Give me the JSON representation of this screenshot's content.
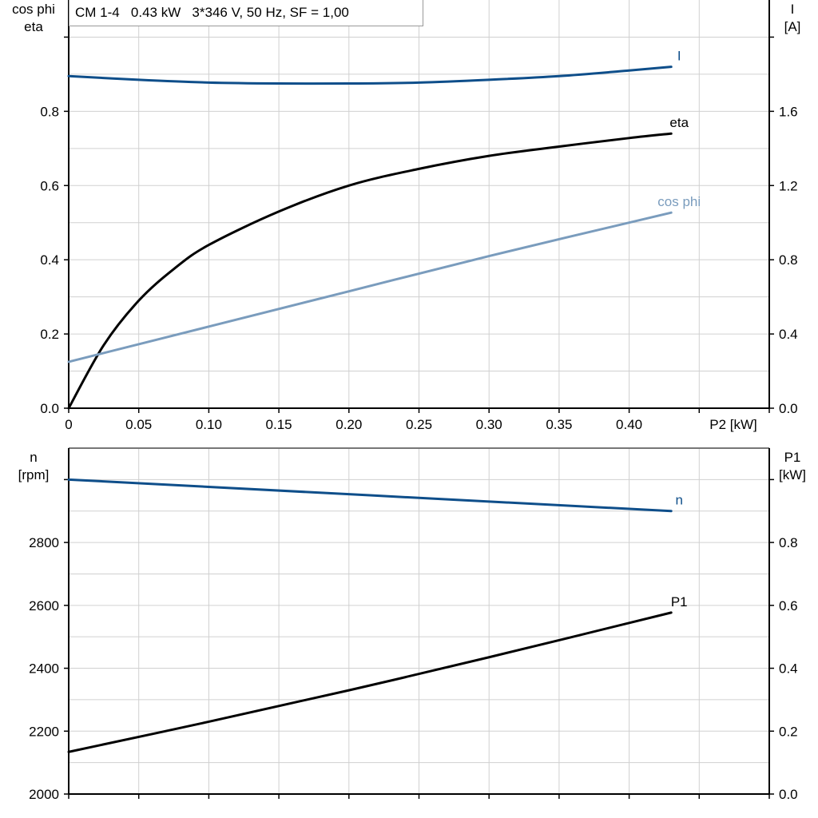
{
  "title": "CM 1-4   0.43 kW   3*346 V, 50 Hz, SF = 1,00",
  "colors": {
    "I": "#0e4e8a",
    "eta": "#000000",
    "cos_phi": "#7a9cbd",
    "n": "#0e4e8a",
    "P1": "#000000",
    "grid": "#d0d0d0"
  },
  "chart_data": [
    {
      "type": "line",
      "xlabel": "P2 [kW]",
      "xlim": [
        0,
        0.5
      ],
      "x_ticks": [
        "0",
        "0.05",
        "0.10",
        "0.15",
        "0.20",
        "0.25",
        "0.30",
        "0.35",
        "0.40"
      ],
      "ylabel_left": [
        "cos phi",
        "eta"
      ],
      "ylim_left": [
        0,
        1.1
      ],
      "y_ticks_left": [
        "0.0",
        "0.2",
        "0.4",
        "0.6",
        "0.8"
      ],
      "ylabel_right": [
        "I",
        "[A]"
      ],
      "ylim_right": [
        0,
        2.2
      ],
      "y_ticks_right": [
        "0.0",
        "0.4",
        "0.8",
        "1.2",
        "1.6"
      ],
      "grid": true,
      "series": [
        {
          "name": "I",
          "axis": "right",
          "color_key": "I",
          "x": [
            0,
            0.05,
            0.1,
            0.15,
            0.2,
            0.25,
            0.3,
            0.35,
            0.4,
            0.43
          ],
          "y": [
            1.79,
            1.77,
            1.755,
            1.75,
            1.75,
            1.755,
            1.77,
            1.79,
            1.82,
            1.84
          ]
        },
        {
          "name": "eta",
          "axis": "left",
          "color_key": "eta",
          "x": [
            0,
            0.025,
            0.05,
            0.075,
            0.1,
            0.15,
            0.2,
            0.25,
            0.3,
            0.35,
            0.4,
            0.43
          ],
          "y": [
            0,
            0.17,
            0.29,
            0.375,
            0.44,
            0.53,
            0.6,
            0.645,
            0.68,
            0.705,
            0.728,
            0.74
          ]
        },
        {
          "name": "cos phi",
          "axis": "left",
          "color_key": "cos_phi",
          "x": [
            0,
            0.1,
            0.2,
            0.3,
            0.43
          ],
          "y": [
            0.125,
            0.22,
            0.315,
            0.41,
            0.527
          ]
        }
      ]
    },
    {
      "type": "line",
      "xlim": [
        0,
        0.5
      ],
      "ylabel_left": [
        "n",
        "[rpm]"
      ],
      "ylim_left": [
        2000,
        3100
      ],
      "y_ticks_left": [
        "2000",
        "2200",
        "2400",
        "2600",
        "2800"
      ],
      "ylabel_right": [
        "P1",
        "[kW]"
      ],
      "ylim_right": [
        0,
        1.1
      ],
      "y_ticks_right": [
        "0.0",
        "0.2",
        "0.4",
        "0.6",
        "0.8"
      ],
      "grid": true,
      "series": [
        {
          "name": "n",
          "axis": "left",
          "color_key": "n",
          "x": [
            0,
            0.43
          ],
          "y": [
            3000,
            2900
          ]
        },
        {
          "name": "P1",
          "axis": "right",
          "color_key": "P1",
          "x": [
            0,
            0.1,
            0.2,
            0.3,
            0.43
          ],
          "y": [
            0.134,
            0.23,
            0.33,
            0.435,
            0.577
          ]
        }
      ]
    }
  ]
}
